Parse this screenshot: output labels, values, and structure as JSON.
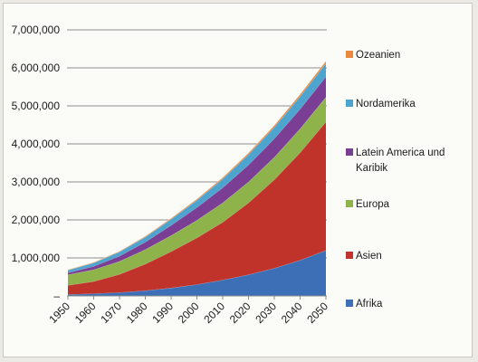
{
  "chart_data": {
    "type": "area",
    "stacked": true,
    "x": [
      1950,
      1960,
      1970,
      1980,
      1990,
      2000,
      2010,
      2020,
      2030,
      2040,
      2050
    ],
    "x_tick_labels": [
      "1950",
      "1960",
      "1970",
      "1980",
      "1990",
      "2000",
      "2010",
      "2020",
      "2030",
      "2040",
      "2050"
    ],
    "y_tick_labels": [
      "–",
      "1,000,000",
      "2,000,000",
      "3,000,000",
      "4,000,000",
      "5,000,000",
      "6,000,000",
      "7,000,000"
    ],
    "ylim": [
      0,
      7000000
    ],
    "grid": true,
    "legend_position": "right",
    "series": [
      {
        "name": "Afrika",
        "color": "#3d6fb6",
        "values": [
          40000,
          60000,
          90000,
          140000,
          210000,
          300000,
          420000,
          560000,
          730000,
          940000,
          1200000
        ]
      },
      {
        "name": "Asien",
        "color": "#c0332b",
        "values": [
          240000,
          320000,
          480000,
          700000,
          960000,
          1230000,
          1520000,
          1890000,
          2330000,
          2830000,
          3380000
        ]
      },
      {
        "name": "Europa",
        "color": "#8db34a",
        "values": [
          280000,
          310000,
          340000,
          380000,
          420000,
          460000,
          510000,
          550000,
          590000,
          630000,
          650000
        ]
      },
      {
        "name": "Latein America und Karibik",
        "color": "#7a3f95",
        "values": [
          50000,
          90000,
          140000,
          200000,
          270000,
          340000,
          400000,
          450000,
          490000,
          520000,
          540000
        ]
      },
      {
        "name": "Nordamerika",
        "color": "#4da4cf",
        "values": [
          70000,
          90000,
          110000,
          130000,
          160000,
          190000,
          230000,
          270000,
          300000,
          330000,
          350000
        ]
      },
      {
        "name": "Ozeanien",
        "color": "#ea8a3e",
        "values": [
          10000,
          13000,
          16000,
          20000,
          25000,
          30000,
          36000,
          42000,
          48000,
          55000,
          60000
        ]
      }
    ]
  },
  "legend": {
    "items": [
      {
        "label_lines": [
          "Ozeanien"
        ],
        "color": "#ea8a3e"
      },
      {
        "label_lines": [
          "Nordamerika"
        ],
        "color": "#4da4cf"
      },
      {
        "label_lines": [
          "Latein America und",
          "Karibik"
        ],
        "color": "#7a3f95"
      },
      {
        "label_lines": [
          "Europa"
        ],
        "color": "#8db34a"
      },
      {
        "label_lines": [
          "Asien"
        ],
        "color": "#c0332b"
      },
      {
        "label_lines": [
          "Afrika"
        ],
        "color": "#3d6fb6"
      }
    ]
  }
}
